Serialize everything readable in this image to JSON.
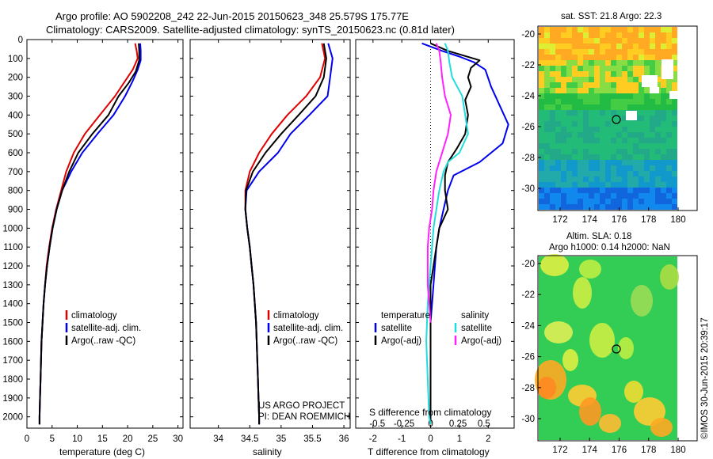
{
  "header": {
    "line1": "Argo profile: AO 5902208_242 22-Jun-2015 20150623_348 25.579S 175.77E",
    "line2": "Climatology: CARS2009. Satellite-adjusted climatology: synTS_20150623.nc (0.81d later)"
  },
  "colors": {
    "climatology": "#e00000",
    "satellite": "#0000ee",
    "argo": "#000000",
    "salinity_sat": "#22dddd",
    "salinity_argo": "#ff22ff"
  },
  "chart_data": [
    {
      "type": "line",
      "panel": "temperature",
      "xlabel": "temperature (deg C)",
      "ylabel": "",
      "xlim": [
        0,
        31
      ],
      "ylim": [
        2060,
        0
      ],
      "xticks": [
        "0",
        "5",
        "10",
        "15",
        "20",
        "25",
        "30"
      ],
      "yticks": [
        "0",
        "100",
        "200",
        "300",
        "400",
        "500",
        "600",
        "700",
        "800",
        "900",
        "1000",
        "1100",
        "1200",
        "1300",
        "1400",
        "1500",
        "1600",
        "1700",
        "1800",
        "1900",
        "2000"
      ],
      "legend": [
        "climatology",
        "satellite-adj. clim.",
        "Argo(..raw -QC)"
      ],
      "series": [
        {
          "name": "climatology",
          "color": "#e00000",
          "points": [
            [
              21.5,
              20
            ],
            [
              21.8,
              60
            ],
            [
              22.0,
              100
            ],
            [
              21.0,
              160
            ],
            [
              19.5,
              220
            ],
            [
              17.5,
              300
            ],
            [
              14.5,
              400
            ],
            [
              11.5,
              500
            ],
            [
              9.3,
              600
            ],
            [
              7.8,
              700
            ],
            [
              6.8,
              800
            ],
            [
              5.8,
              900
            ],
            [
              5.0,
              1000
            ],
            [
              4.4,
              1100
            ],
            [
              3.9,
              1200
            ],
            [
              3.6,
              1300
            ],
            [
              3.3,
              1400
            ],
            [
              3.1,
              1500
            ],
            [
              2.9,
              1600
            ],
            [
              2.8,
              1700
            ],
            [
              2.7,
              1800
            ],
            [
              2.6,
              1900
            ],
            [
              2.5,
              2000
            ],
            [
              2.5,
              2040
            ]
          ]
        },
        {
          "name": "satellite-adj. clim.",
          "color": "#0000ee",
          "points": [
            [
              22.5,
              20
            ],
            [
              22.6,
              60
            ],
            [
              22.6,
              110
            ],
            [
              22.0,
              160
            ],
            [
              21.0,
              220
            ],
            [
              19.5,
              300
            ],
            [
              17.2,
              400
            ],
            [
              14.0,
              500
            ],
            [
              11.0,
              600
            ],
            [
              8.8,
              700
            ],
            [
              7.0,
              800
            ],
            [
              5.9,
              900
            ],
            [
              5.1,
              1000
            ],
            [
              4.5,
              1100
            ],
            [
              4.0,
              1200
            ],
            [
              3.6,
              1300
            ],
            [
              3.3,
              1400
            ],
            [
              3.1,
              1500
            ],
            [
              2.9,
              1600
            ],
            [
              2.8,
              1700
            ],
            [
              2.7,
              1800
            ],
            [
              2.6,
              1900
            ],
            [
              2.5,
              2000
            ],
            [
              2.5,
              2040
            ]
          ]
        },
        {
          "name": "Argo(..raw -QC)",
          "color": "#000000",
          "points": [
            [
              22.2,
              20
            ],
            [
              22.3,
              60
            ],
            [
              22.3,
              110
            ],
            [
              21.6,
              170
            ],
            [
              20.2,
              230
            ],
            [
              18.2,
              300
            ],
            [
              16.2,
              400
            ],
            [
              13.0,
              500
            ],
            [
              10.2,
              600
            ],
            [
              8.4,
              700
            ],
            [
              7.0,
              800
            ],
            [
              5.9,
              900
            ],
            [
              5.1,
              1000
            ],
            [
              4.5,
              1100
            ],
            [
              4.0,
              1200
            ],
            [
              3.6,
              1300
            ],
            [
              3.3,
              1400
            ],
            [
              3.1,
              1500
            ],
            [
              2.9,
              1600
            ],
            [
              2.8,
              1700
            ],
            [
              2.7,
              1800
            ],
            [
              2.6,
              1900
            ],
            [
              2.5,
              2000
            ],
            [
              2.5,
              2040
            ]
          ]
        }
      ]
    },
    {
      "type": "line",
      "panel": "salinity",
      "xlabel": "salinity",
      "xlim": [
        33.55,
        36.1
      ],
      "ylim": [
        2060,
        0
      ],
      "xticks": [
        "34",
        "34.5",
        "35",
        "35.5",
        "36"
      ],
      "legend": [
        "climatology",
        "satellite-adj. clim.",
        "Argo(..raw -QC)"
      ],
      "annotation": [
        "US ARGO PROJECT",
        "PI: DEAN ROEMMICH"
      ],
      "series": [
        {
          "name": "climatology",
          "color": "#e00000",
          "points": [
            [
              35.65,
              20
            ],
            [
              35.7,
              100
            ],
            [
              35.62,
              200
            ],
            [
              35.4,
              300
            ],
            [
              35.1,
              400
            ],
            [
              34.85,
              500
            ],
            [
              34.65,
              600
            ],
            [
              34.5,
              700
            ],
            [
              34.43,
              800
            ],
            [
              34.43,
              900
            ],
            [
              34.46,
              1000
            ],
            [
              34.5,
              1100
            ],
            [
              34.53,
              1200
            ],
            [
              34.56,
              1300
            ],
            [
              34.58,
              1400
            ],
            [
              34.6,
              1500
            ],
            [
              34.61,
              1600
            ],
            [
              34.62,
              1700
            ],
            [
              34.63,
              1800
            ],
            [
              34.64,
              1900
            ],
            [
              34.65,
              2000
            ],
            [
              34.65,
              2040
            ]
          ]
        },
        {
          "name": "satellite-adj. clim.",
          "color": "#0000ee",
          "points": [
            [
              35.75,
              20
            ],
            [
              35.82,
              100
            ],
            [
              35.78,
              200
            ],
            [
              35.74,
              300
            ],
            [
              35.45,
              400
            ],
            [
              35.15,
              500
            ],
            [
              34.95,
              600
            ],
            [
              34.65,
              700
            ],
            [
              34.45,
              800
            ],
            [
              34.43,
              900
            ],
            [
              34.46,
              1000
            ],
            [
              34.5,
              1100
            ],
            [
              34.53,
              1200
            ],
            [
              34.56,
              1300
            ],
            [
              34.58,
              1400
            ],
            [
              34.6,
              1500
            ],
            [
              34.61,
              1600
            ],
            [
              34.62,
              1700
            ],
            [
              34.63,
              1800
            ],
            [
              34.64,
              1900
            ],
            [
              34.65,
              2000
            ],
            [
              34.65,
              2040
            ]
          ]
        },
        {
          "name": "Argo(..raw -QC)",
          "color": "#000000",
          "points": [
            [
              35.68,
              20
            ],
            [
              35.72,
              100
            ],
            [
              35.68,
              200
            ],
            [
              35.55,
              300
            ],
            [
              35.28,
              400
            ],
            [
              35.0,
              500
            ],
            [
              34.75,
              600
            ],
            [
              34.55,
              700
            ],
            [
              34.44,
              800
            ],
            [
              34.43,
              900
            ],
            [
              34.46,
              1000
            ],
            [
              34.5,
              1100
            ],
            [
              34.53,
              1200
            ],
            [
              34.56,
              1300
            ],
            [
              34.58,
              1400
            ],
            [
              34.6,
              1500
            ],
            [
              34.61,
              1600
            ],
            [
              34.62,
              1700
            ],
            [
              34.63,
              1800
            ],
            [
              34.64,
              1900
            ],
            [
              34.65,
              2000
            ],
            [
              34.65,
              2040
            ]
          ]
        }
      ]
    },
    {
      "type": "line",
      "panel": "difference",
      "xlabel": "T difference from climatology",
      "xlabel2": "S difference from climatology",
      "xlim": [
        -2.6,
        2.9
      ],
      "ylim": [
        2060,
        0
      ],
      "xticks": [
        "-2",
        "-1",
        "0",
        "1",
        "2"
      ],
      "xticks_s": [
        "-0.5",
        "-0.25",
        "0",
        "0.25",
        "0.5"
      ],
      "legend_temperature": [
        "temperature",
        "satellite",
        "Argo(-adj)"
      ],
      "legend_salinity": [
        "salinity",
        "satellite",
        "Argo(-adj)"
      ],
      "series": [
        {
          "name": "satellite",
          "color": "#0000ee",
          "points": [
            [
              -0.3,
              20
            ],
            [
              0.4,
              60
            ],
            [
              1.0,
              90
            ],
            [
              1.5,
              120
            ],
            [
              1.9,
              160
            ],
            [
              2.1,
              250
            ],
            [
              2.4,
              350
            ],
            [
              2.7,
              450
            ],
            [
              2.5,
              550
            ],
            [
              1.7,
              650
            ],
            [
              0.8,
              720
            ],
            [
              0.6,
              800
            ],
            [
              0.45,
              900
            ],
            [
              0.3,
              1000
            ],
            [
              0.2,
              1100
            ],
            [
              0.15,
              1200
            ],
            [
              0.1,
              1300
            ],
            [
              0.05,
              1400
            ],
            [
              0.0,
              1500
            ],
            [
              0.0,
              2040
            ]
          ]
        },
        {
          "name": "Argo(-adj)",
          "color": "#000000",
          "points": [
            [
              0.0,
              20
            ],
            [
              0.6,
              60
            ],
            [
              1.7,
              110
            ],
            [
              1.4,
              150
            ],
            [
              1.3,
              200
            ],
            [
              1.4,
              250
            ],
            [
              1.2,
              320
            ],
            [
              1.3,
              400
            ],
            [
              1.2,
              500
            ],
            [
              0.9,
              580
            ],
            [
              0.6,
              650
            ],
            [
              0.5,
              720
            ],
            [
              0.5,
              800
            ],
            [
              0.6,
              900
            ],
            [
              0.3,
              1000
            ],
            [
              0.2,
              1100
            ],
            [
              0.1,
              1200
            ],
            [
              0.0,
              1300
            ],
            [
              0.0,
              1500
            ],
            [
              0.0,
              2040
            ]
          ]
        },
        {
          "name": "satellite (S)",
          "color": "#22dddd",
          "points": [
            [
              0.5,
              20
            ],
            [
              0.6,
              60
            ],
            [
              0.65,
              120
            ],
            [
              0.75,
              200
            ],
            [
              1.1,
              300
            ],
            [
              1.2,
              400
            ],
            [
              1.3,
              500
            ],
            [
              1.0,
              600
            ],
            [
              0.6,
              650
            ],
            [
              0.45,
              700
            ],
            [
              0.3,
              800
            ],
            [
              0.2,
              900
            ],
            [
              0.1,
              1000
            ],
            [
              0.05,
              1100
            ],
            [
              0.0,
              1200
            ],
            [
              -0.1,
              1400
            ],
            [
              -0.15,
              1600
            ],
            [
              -0.1,
              1800
            ],
            [
              -0.05,
              2000
            ],
            [
              0.0,
              2040
            ]
          ]
        },
        {
          "name": "Argo(-adj) (S)",
          "color": "#ff22ff",
          "points": [
            [
              0.2,
              20
            ],
            [
              0.3,
              60
            ],
            [
              0.35,
              120
            ],
            [
              0.4,
              200
            ],
            [
              0.5,
              300
            ],
            [
              0.7,
              400
            ],
            [
              0.6,
              500
            ],
            [
              0.4,
              600
            ],
            [
              0.2,
              700
            ],
            [
              0.1,
              800
            ],
            [
              0.05,
              900
            ],
            [
              -0.05,
              1000
            ],
            [
              -0.1,
              1100
            ],
            [
              -0.1,
              1200
            ],
            [
              -0.1,
              1300
            ],
            [
              -0.05,
              1400
            ],
            [
              0.0,
              1500
            ]
          ]
        }
      ]
    }
  ],
  "maps": {
    "sst_title": "sat. SST: 21.8 Argo: 22.3",
    "sla_title_1": "Altim. SLA: 0.18",
    "sla_title_2": "Argo h1000: 0.14 h2000: NaN",
    "lat_ticks": [
      "-20",
      "-22",
      "-24",
      "-26",
      "-28",
      "-30"
    ],
    "lon_ticks": [
      "172",
      "174",
      "176",
      "178",
      "180"
    ]
  },
  "footer": {
    "stamp": "©IMOS 30-Jun-2015 20:39:17"
  }
}
